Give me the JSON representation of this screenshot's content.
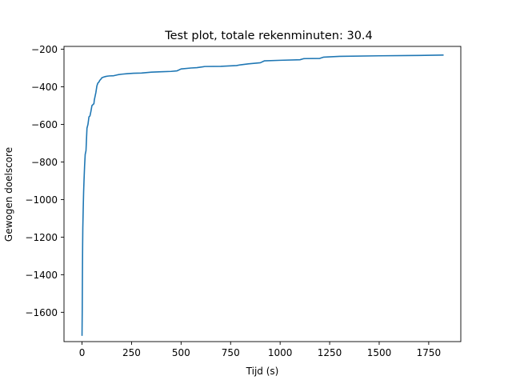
{
  "chart_data": {
    "type": "line",
    "title": "Test plot, totale rekenminuten: 30.4",
    "xlabel": "Tijd (s)",
    "ylabel": "Gewogen doelscore",
    "xlim": [
      -91,
      1912
    ],
    "ylim": [
      -1756,
      -185
    ],
    "xticks": [
      0,
      250,
      500,
      750,
      1000,
      1250,
      1500,
      1750
    ],
    "xtick_labels": [
      "0",
      "250",
      "500",
      "750",
      "1000",
      "1250",
      "1500",
      "1750"
    ],
    "yticks": [
      -1600,
      -1400,
      -1200,
      -1000,
      -800,
      -600,
      -400,
      -200
    ],
    "ytick_labels": [
      "−1600",
      "−1400",
      "−1200",
      "−1000",
      "−800",
      "−600",
      "−400",
      "−200"
    ],
    "grid": false,
    "series": [
      {
        "color": "#1f77b4",
        "x": [
          0,
          1,
          2,
          3,
          4,
          6,
          8,
          10,
          13,
          16,
          20,
          25,
          30,
          35,
          40,
          45,
          50,
          55,
          60,
          62,
          66,
          70,
          75,
          80,
          85,
          90,
          95,
          100,
          110,
          120,
          130,
          140,
          160,
          180,
          200,
          230,
          260,
          300,
          350,
          400,
          450,
          480,
          500,
          550,
          580,
          620,
          700,
          780,
          800,
          840,
          900,
          920,
          1000,
          1100,
          1120,
          1200,
          1220,
          1300,
          1500,
          1700,
          1822
        ],
        "y": [
          -1722,
          -1600,
          -1400,
          -1250,
          -1150,
          -1050,
          -960,
          -900,
          -820,
          -760,
          -740,
          -620,
          -600,
          -560,
          -555,
          -530,
          -500,
          -495,
          -490,
          -470,
          -450,
          -430,
          -395,
          -380,
          -375,
          -365,
          -360,
          -352,
          -348,
          -345,
          -343,
          -342,
          -341,
          -336,
          -333,
          -330,
          -328,
          -327,
          -322,
          -320,
          -318,
          -315,
          -305,
          -300,
          -298,
          -292,
          -291,
          -287,
          -283,
          -278,
          -272,
          -262,
          -259,
          -256,
          -250,
          -249,
          -242,
          -238,
          -235,
          -233,
          -231
        ]
      }
    ]
  }
}
